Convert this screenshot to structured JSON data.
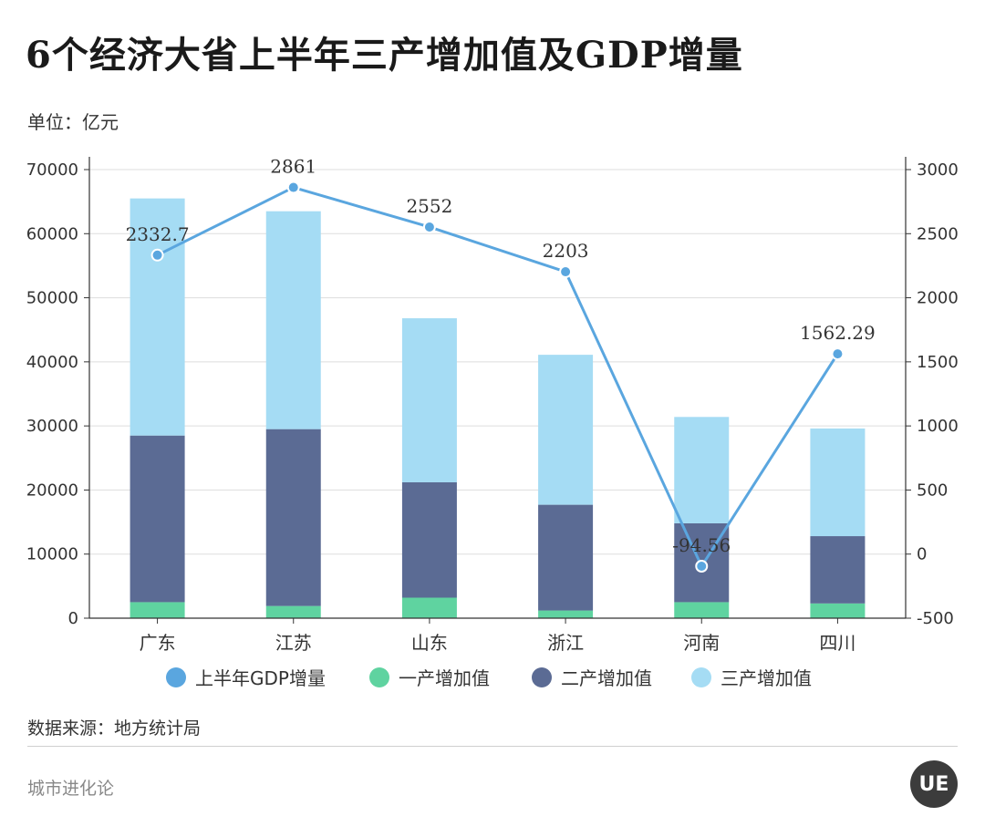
{
  "title": "6个经济大省上半年三产增加值及GDP增量",
  "unit_label": "单位：亿元",
  "source": "数据来源：地方统计局",
  "footer": "城市进化论",
  "logo_text": "UE",
  "colors": {
    "gdp_line": "#5aa6df",
    "primary": "#5fd3a0",
    "secondary": "#5b6b94",
    "tertiary": "#a5dcf4",
    "grid": "#dddddd",
    "axis": "#333333"
  },
  "legend": [
    {
      "label": "上半年GDP增量",
      "color": "#5aa6df"
    },
    {
      "label": "一产增加值",
      "color": "#5fd3a0"
    },
    {
      "label": "二产增加值",
      "color": "#5b6b94"
    },
    {
      "label": "三产增加值",
      "color": "#a5dcf4"
    }
  ],
  "chart_data": {
    "type": "bar",
    "stacked": true,
    "categories": [
      "广东",
      "江苏",
      "山东",
      "浙江",
      "河南",
      "四川"
    ],
    "series": [
      {
        "name": "一产增加值",
        "axis": "left",
        "values": [
          2500,
          1900,
          3200,
          1200,
          2500,
          2300
        ]
      },
      {
        "name": "二产增加值",
        "axis": "left",
        "values": [
          26000,
          27600,
          18000,
          16500,
          12300,
          10500
        ]
      },
      {
        "name": "三产增加值",
        "axis": "left",
        "values": [
          37000,
          34000,
          25600,
          23400,
          16600,
          16800
        ]
      },
      {
        "name": "上半年GDP增量",
        "type": "line",
        "axis": "right",
        "values": [
          2332.7,
          2861,
          2552,
          2203,
          -94.56,
          1562.29
        ],
        "labels": [
          "2332.7",
          "2861",
          "2552",
          "2203",
          "-94.56",
          "1562.29"
        ]
      }
    ],
    "y_left": {
      "min": 0,
      "max": 70000,
      "ticks": [
        0,
        10000,
        20000,
        30000,
        40000,
        50000,
        60000,
        70000
      ]
    },
    "y_right": {
      "min": -500,
      "max": 3000,
      "ticks": [
        -500,
        0,
        500,
        1000,
        1500,
        2000,
        2500,
        3000
      ]
    },
    "grid": true,
    "legend_position": "bottom"
  }
}
